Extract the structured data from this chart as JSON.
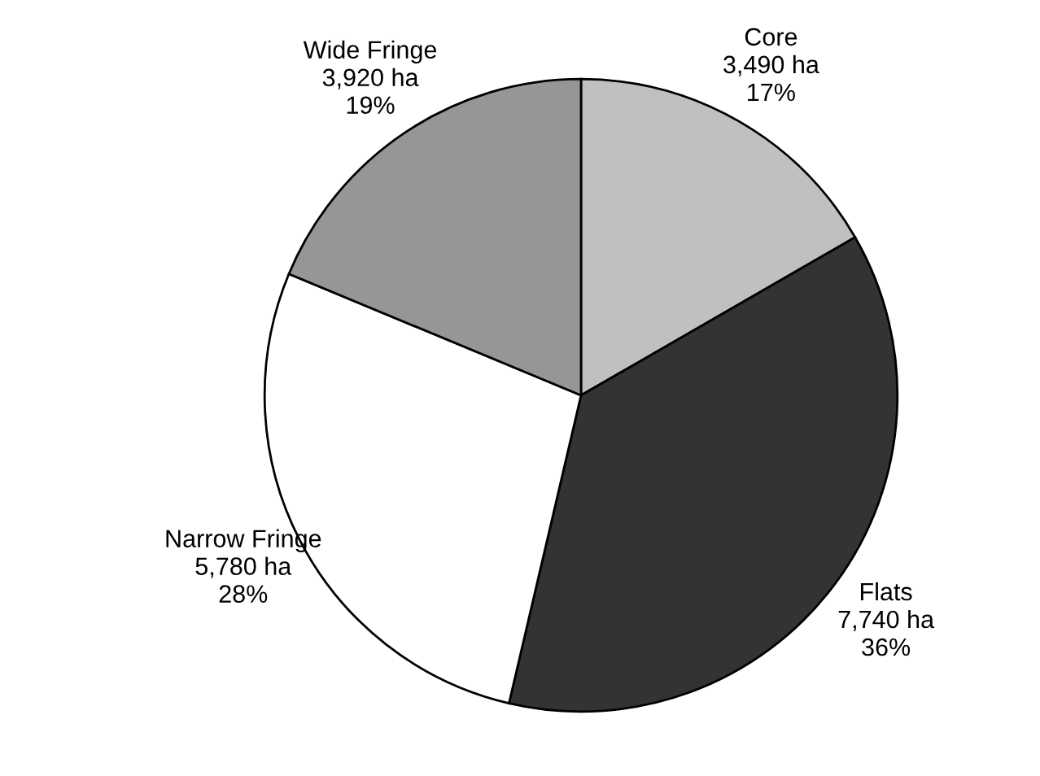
{
  "chart_data": {
    "type": "pie",
    "categories": [
      "Core",
      "Flats",
      "Narrow Fringe",
      "Wide Fringe"
    ],
    "values": [
      3490,
      7740,
      5780,
      3920
    ],
    "value_labels": [
      "3,490 ha\n17%",
      "7,740 ha\n36%",
      "5,780 ha\n28%",
      "3,920 ha\n19%"
    ],
    "colors": [
      "#c0c0c0",
      "#333333",
      "#ffffff",
      "#969696"
    ],
    "legend": false
  }
}
